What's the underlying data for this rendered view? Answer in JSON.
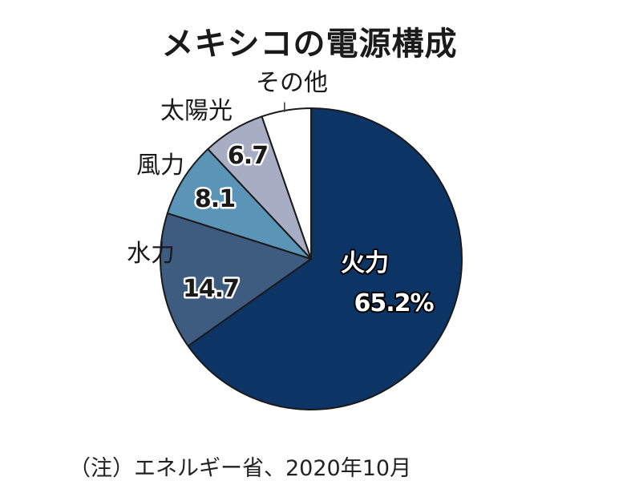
{
  "chart_data": {
    "type": "pie",
    "title": "メキシコの電源構成",
    "note": "（注）エネルギー省、2020年10月",
    "start_angle_deg": 0,
    "direction": "clockwise",
    "categories": [
      "火力",
      "水力",
      "風力",
      "太陽光",
      "その他"
    ],
    "values": [
      65.2,
      14.7,
      8.1,
      6.7,
      5.3
    ],
    "value_labels": [
      "65.2%",
      "14.7",
      "8.1",
      "6.7",
      ""
    ],
    "colors": [
      "#0c3565",
      "#3e5b80",
      "#5a95b8",
      "#a7aec4",
      "#ffffff"
    ]
  }
}
